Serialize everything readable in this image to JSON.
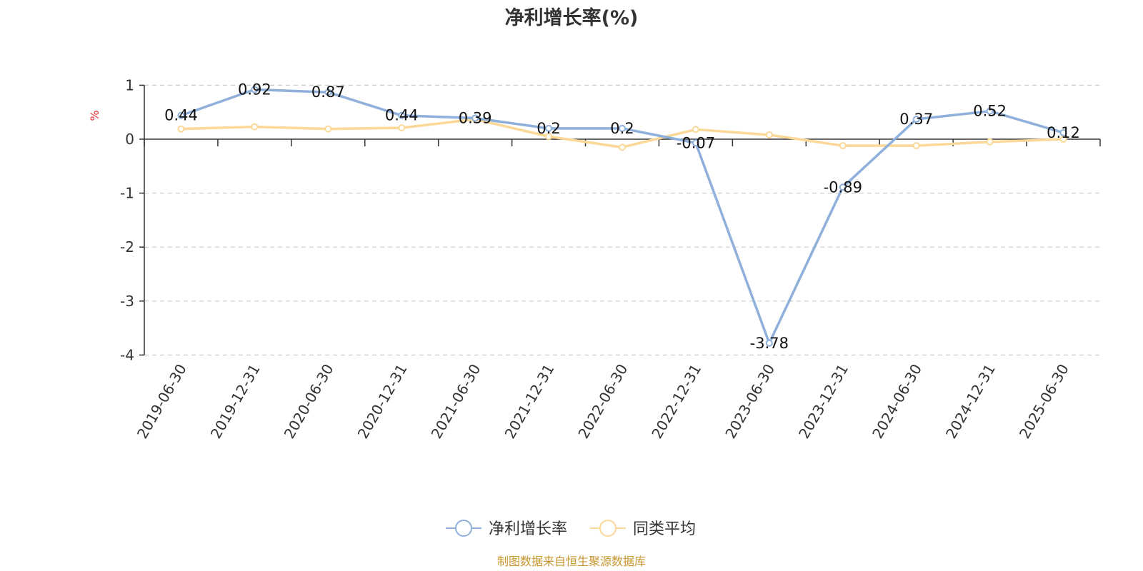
{
  "chart_data": {
    "type": "line",
    "title": "净利增长率(%)",
    "ylabel": "%",
    "xlabel": "",
    "categories": [
      "2019-06-30",
      "2019-12-31",
      "2020-06-30",
      "2020-12-31",
      "2021-06-30",
      "2021-12-31",
      "2022-06-30",
      "2022-12-31",
      "2023-06-30",
      "2023-12-31",
      "2024-06-30",
      "2024-12-31",
      "2025-06-30"
    ],
    "ylim": [
      -4,
      1
    ],
    "yticks": [
      "1",
      "0",
      "-1",
      "-2",
      "-3",
      "-4"
    ],
    "grid": true,
    "legend_position": "bottom",
    "series": [
      {
        "name": "净利增长率",
        "color": "#8eb0da",
        "values": [
          0.44,
          0.92,
          0.87,
          0.44,
          0.39,
          0.2,
          0.2,
          -0.07,
          -3.78,
          -0.89,
          0.37,
          0.52,
          0.12
        ],
        "labels": [
          "0.44",
          "0.92",
          "0.87",
          "0.44",
          "0.39",
          "0.2",
          "0.2",
          "-0.07",
          "-3.78",
          "-0.89",
          "0.37",
          "0.52",
          "0.12"
        ]
      },
      {
        "name": "同类平均",
        "color": "#fbd898",
        "values": [
          0.19,
          0.23,
          0.19,
          0.21,
          0.37,
          0.05,
          -0.15,
          0.18,
          0.08,
          -0.12,
          -0.12,
          -0.05,
          0.0
        ]
      }
    ]
  },
  "source": {
    "text": "制图数据来自恒生聚源数据库",
    "color": "#c8962e"
  },
  "unit_color": "#e03030"
}
